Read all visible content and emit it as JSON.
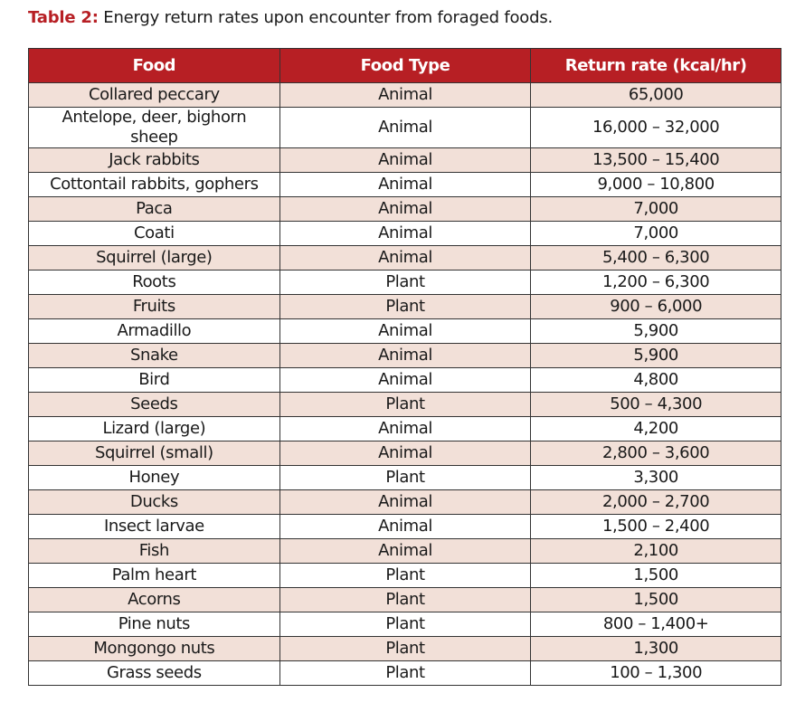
{
  "caption": {
    "label": "Table 2:",
    "text": "Energy return rates upon encounter from foraged foods."
  },
  "colors": {
    "header": "#b71f24",
    "band": "#f2e0d8"
  },
  "table": {
    "headers": [
      "Food",
      "Food Type",
      "Return rate (kcal/hr)"
    ],
    "rows": [
      [
        "Collared peccary",
        "Animal",
        "65,000"
      ],
      [
        "Antelope, deer, bighorn sheep",
        "Animal",
        "16,000 – 32,000"
      ],
      [
        "Jack rabbits",
        "Animal",
        "13,500 – 15,400"
      ],
      [
        "Cottontail rabbits, gophers",
        "Animal",
        "9,000 – 10,800"
      ],
      [
        "Paca",
        "Animal",
        "7,000"
      ],
      [
        "Coati",
        "Animal",
        "7,000"
      ],
      [
        "Squirrel (large)",
        "Animal",
        "5,400 – 6,300"
      ],
      [
        "Roots",
        "Plant",
        "1,200 – 6,300"
      ],
      [
        "Fruits",
        "Plant",
        "900 – 6,000"
      ],
      [
        "Armadillo",
        "Animal",
        "5,900"
      ],
      [
        "Snake",
        "Animal",
        "5,900"
      ],
      [
        "Bird",
        "Animal",
        "4,800"
      ],
      [
        "Seeds",
        "Plant",
        "500 – 4,300"
      ],
      [
        "Lizard (large)",
        "Animal",
        "4,200"
      ],
      [
        "Squirrel (small)",
        "Animal",
        "2,800 – 3,600"
      ],
      [
        "Honey",
        "Plant",
        "3,300"
      ],
      [
        "Ducks",
        "Animal",
        "2,000 – 2,700"
      ],
      [
        "Insect larvae",
        "Animal",
        "1,500 – 2,400"
      ],
      [
        "Fish",
        "Animal",
        "2,100"
      ],
      [
        "Palm heart",
        "Plant",
        "1,500"
      ],
      [
        "Acorns",
        "Plant",
        "1,500"
      ],
      [
        "Pine nuts",
        "Plant",
        "800 – 1,400+"
      ],
      [
        "Mongongo nuts",
        "Plant",
        "1,300"
      ],
      [
        "Grass seeds",
        "Plant",
        "100 – 1,300"
      ]
    ]
  }
}
